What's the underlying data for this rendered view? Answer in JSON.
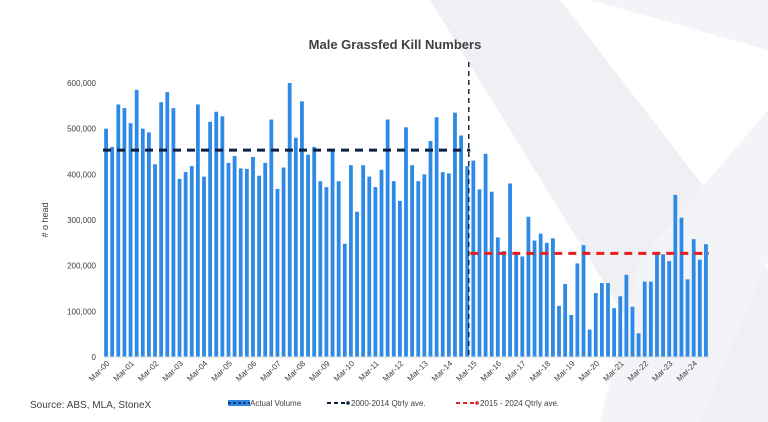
{
  "source": "Source: ABS, MLA, StoneX",
  "colors": {
    "bar": "#2e8ae6",
    "avg_2000_2014": "#0d2145",
    "avg_2015_2024": "#e81d1d",
    "divider": "#1a2b45",
    "watermark": "#eef0f4"
  },
  "chart_data": {
    "type": "bar",
    "title": "Male Grassfed Kill Numbers",
    "ylabel": "# o head",
    "xlabel": "",
    "ylim": [
      0,
      600000
    ],
    "yticks": [
      0,
      100000,
      200000,
      300000,
      400000,
      500000,
      600000
    ],
    "ytick_labels": [
      "0",
      "100,000",
      "200,000",
      "300,000",
      "400,000",
      "500,000",
      "600,000"
    ],
    "xtick_labels": [
      "Mar-00",
      "Mar-01",
      "Mar-02",
      "Mar-03",
      "Mar-04",
      "Mar-05",
      "Mar-06",
      "Mar-07",
      "Mar-08",
      "Mar-09",
      "Mar-10",
      "Mar-11",
      "Mar-12",
      "Mar-13",
      "Mar-14",
      "Mar-15",
      "Mar-16",
      "Mar-17",
      "Mar-18",
      "Mar-19",
      "Mar-20",
      "Mar-21",
      "Mar-22",
      "Mar-23",
      "Mar-24"
    ],
    "first_period": "Mar-00",
    "period_step": "quarter",
    "series": [
      {
        "name": "Actual Volume",
        "type": "bar",
        "values": [
          500000,
          460000,
          553000,
          545000,
          512000,
          585000,
          500000,
          492000,
          422000,
          558000,
          580000,
          545000,
          390000,
          405000,
          418000,
          553000,
          395000,
          515000,
          537000,
          527000,
          425000,
          440000,
          413000,
          412000,
          438000,
          397000,
          425000,
          520000,
          368000,
          415000,
          600000,
          480000,
          560000,
          443000,
          460000,
          385000,
          372000,
          450000,
          385000,
          248000,
          420000,
          318000,
          420000,
          395000,
          372000,
          410000,
          520000,
          385000,
          342000,
          503000,
          420000,
          385000,
          400000,
          473000,
          525000,
          405000,
          402000,
          535000,
          485000,
          418000,
          430000,
          367000,
          445000,
          362000,
          262000,
          232000,
          380000,
          228000,
          220000,
          307000,
          255000,
          270000,
          250000,
          260000,
          112000,
          160000,
          92000,
          205000,
          245000,
          60000,
          140000,
          162000,
          162000,
          107000,
          133000,
          180000,
          110000,
          52000,
          165000,
          165000,
          230000,
          225000,
          210000,
          355000,
          305000,
          170000,
          258000,
          213000,
          247000
        ]
      },
      {
        "name": "2000-2014 Qtrly ave.",
        "type": "line",
        "style": "dashed",
        "value": 453000,
        "from": "Mar-00",
        "to": "Dec-14"
      },
      {
        "name": "2015 - 2024 Qtrly ave.",
        "type": "line",
        "style": "dashed",
        "value": 227000,
        "from": "Mar-15",
        "to": "Sep-24"
      }
    ],
    "divider_at": "Mar-15",
    "legend": {
      "placement": "bottom",
      "entries": [
        "Actual Volume",
        "2000-2014 Qtrly ave.",
        "2015 - 2024 Qtrly ave."
      ]
    },
    "grid": false
  }
}
